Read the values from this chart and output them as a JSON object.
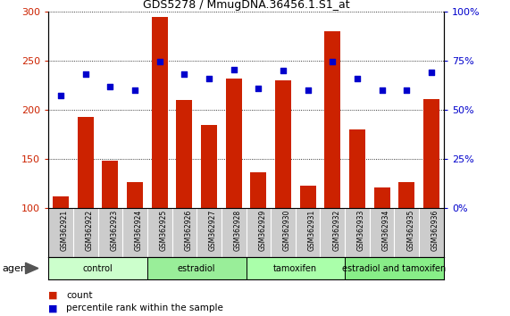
{
  "title": "GDS5278 / MmugDNA.36456.1.S1_at",
  "samples": [
    "GSM362921",
    "GSM362922",
    "GSM362923",
    "GSM362924",
    "GSM362925",
    "GSM362926",
    "GSM362927",
    "GSM362928",
    "GSM362929",
    "GSM362930",
    "GSM362931",
    "GSM362932",
    "GSM362933",
    "GSM362934",
    "GSM362935",
    "GSM362936"
  ],
  "counts": [
    112,
    193,
    148,
    126,
    295,
    210,
    185,
    232,
    136,
    230,
    123,
    280,
    180,
    121,
    126,
    211
  ],
  "percentile_left_equiv": [
    215,
    237,
    224,
    220,
    249,
    237,
    232,
    241,
    222,
    240,
    220,
    249,
    232,
    220,
    220,
    238
  ],
  "bar_color": "#cc2200",
  "dot_color": "#0000cc",
  "groups": [
    {
      "label": "control",
      "start": 0,
      "end": 4,
      "color": "#ccffcc"
    },
    {
      "label": "estradiol",
      "start": 4,
      "end": 8,
      "color": "#99ee99"
    },
    {
      "label": "tamoxifen",
      "start": 8,
      "end": 12,
      "color": "#aaffaa"
    },
    {
      "label": "estradiol and tamoxifen",
      "start": 12,
      "end": 16,
      "color": "#88ee88"
    }
  ],
  "ylim_left": [
    100,
    300
  ],
  "ylim_right": [
    0,
    100
  ],
  "yticks_left": [
    100,
    150,
    200,
    250,
    300
  ],
  "yticks_right": [
    0,
    25,
    50,
    75,
    100
  ],
  "bar_color_left": "#cc2200",
  "dot_color_blue": "#0000cc",
  "background_color": "#ffffff",
  "plot_bg_color": "#ffffff",
  "sample_bg_color": "#cccccc",
  "agent_label": "agent",
  "legend_count_label": "count",
  "legend_pct_label": "percentile rank within the sample"
}
